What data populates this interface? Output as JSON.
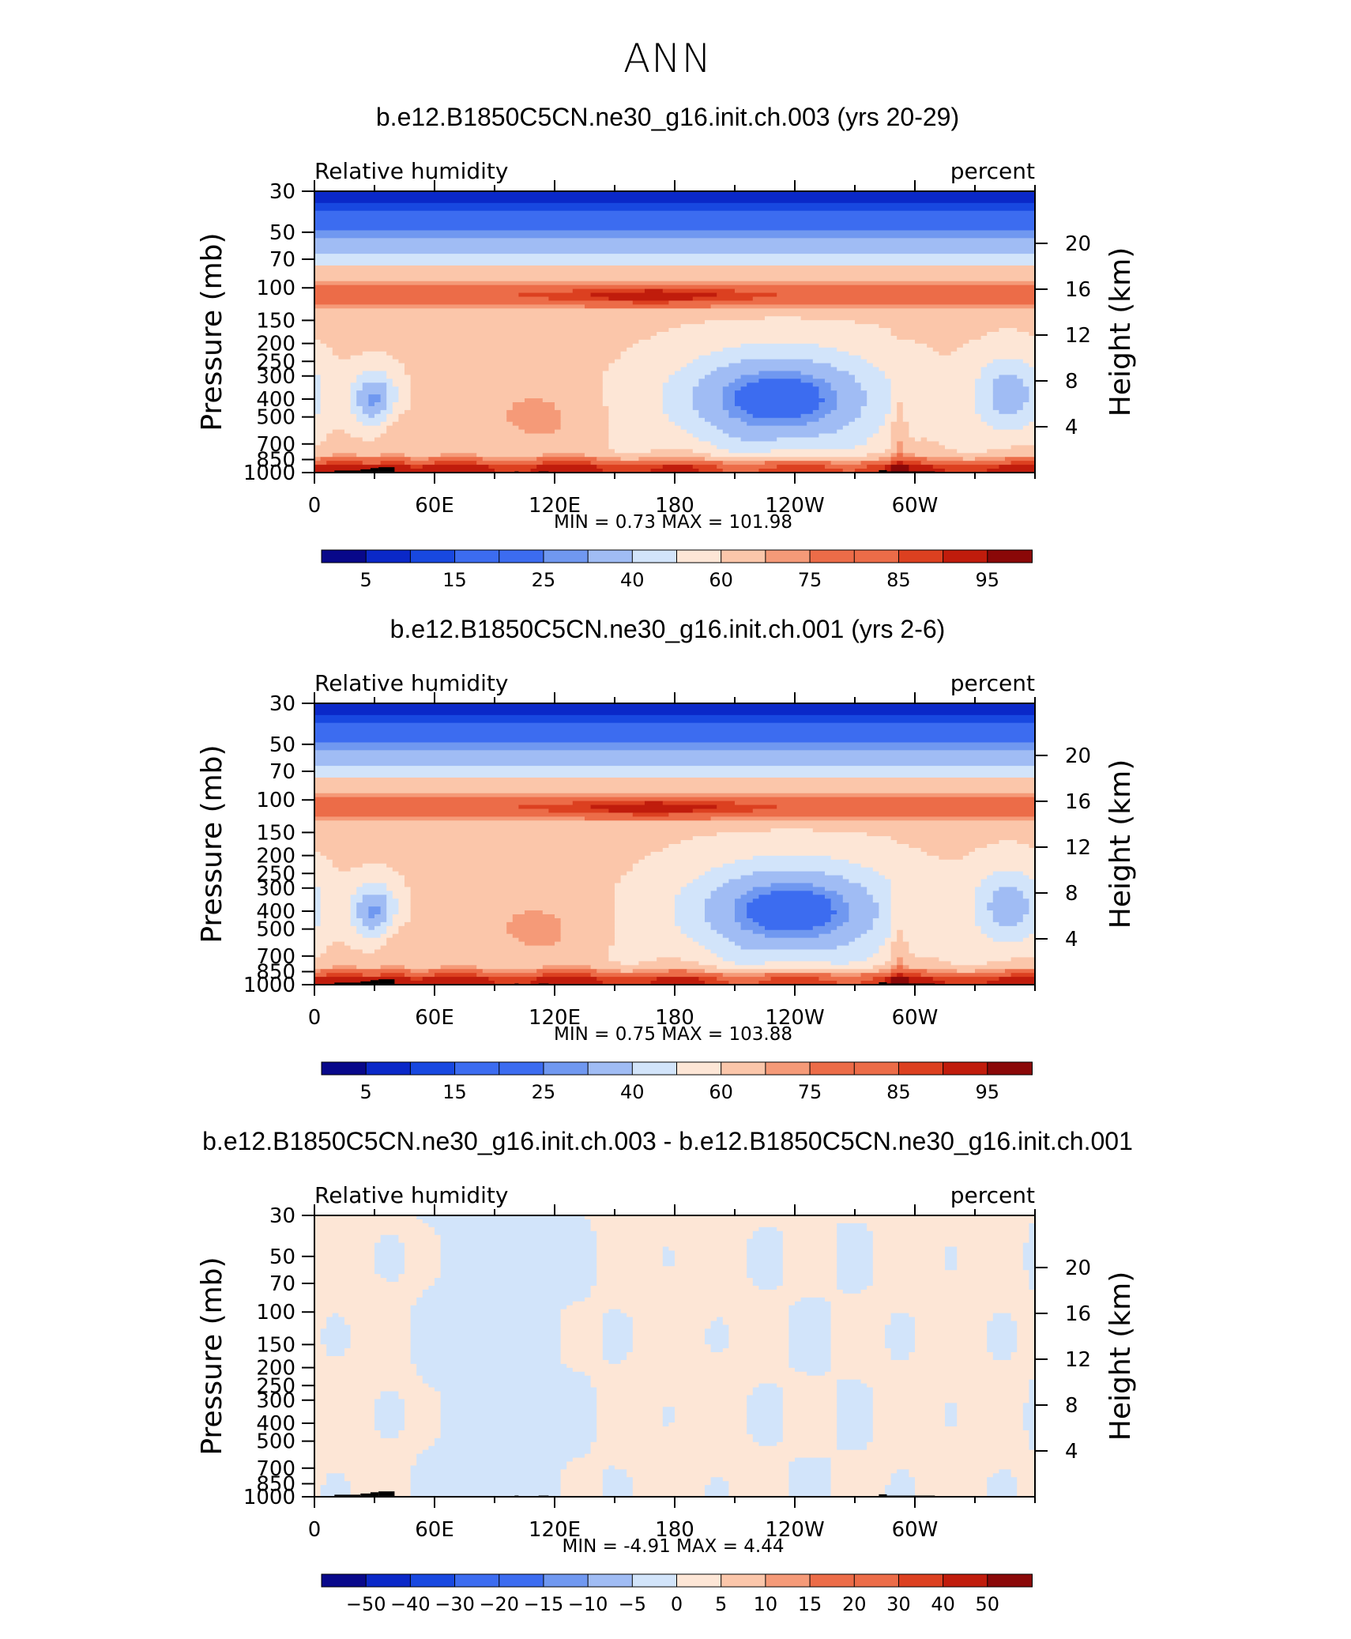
{
  "page_title": "ANN",
  "colors": {
    "div": [
      "#08088a",
      "#0a28c8",
      "#1848e0",
      "#3c6cf0",
      "#7098f0",
      "#a0bcf4",
      "#d2e4fa",
      "#fde6d6",
      "#fbc6aa",
      "#f59a78",
      "#ec6c48",
      "#dc4020",
      "#c01c0c",
      "#8a0808"
    ],
    "land": "#000000"
  },
  "chart_data": [
    {
      "type": "heatmap",
      "title": "b.e12.B1850C5CN.ne30_g16.init.ch.003 (yrs 20-29)",
      "left_label": "Relative humidity",
      "right_label": "percent",
      "ylabel": "Pressure (mb)",
      "y2label": "Height (km)",
      "y_scale": "log",
      "y_ticks": [
        "30",
        "50",
        "70",
        "100",
        "150",
        "200",
        "250",
        "300",
        "400",
        "500",
        "700",
        "850",
        "1000"
      ],
      "y2_ticks": [
        "20",
        "16",
        "12",
        "8",
        "4"
      ],
      "x_ticks": [
        "0",
        "60E",
        "120E",
        "180",
        "120W",
        "60W"
      ],
      "min_label": "MIN =",
      "min_value": "0.73",
      "max_label": "MAX =",
      "max_value": "101.98",
      "colorbar_labels": [
        "5",
        "15",
        "25",
        "40",
        "60",
        "75",
        "85",
        "95"
      ],
      "field": "relative_humidity_annual_zonal_section"
    },
    {
      "type": "heatmap",
      "title": "b.e12.B1850C5CN.ne30_g16.init.ch.001 (yrs 2-6)",
      "left_label": "Relative humidity",
      "right_label": "percent",
      "ylabel": "Pressure (mb)",
      "y2label": "Height (km)",
      "y_scale": "log",
      "y_ticks": [
        "30",
        "50",
        "70",
        "100",
        "150",
        "200",
        "250",
        "300",
        "400",
        "500",
        "700",
        "850",
        "1000"
      ],
      "y2_ticks": [
        "20",
        "16",
        "12",
        "8",
        "4"
      ],
      "x_ticks": [
        "0",
        "60E",
        "120E",
        "180",
        "120W",
        "60W"
      ],
      "min_label": "MIN =",
      "min_value": "0.75",
      "max_label": "MAX =",
      "max_value": "103.88",
      "colorbar_labels": [
        "5",
        "15",
        "25",
        "40",
        "60",
        "75",
        "85",
        "95"
      ],
      "field": "relative_humidity_annual_zonal_section"
    },
    {
      "type": "heatmap",
      "title": "b.e12.B1850C5CN.ne30_g16.init.ch.003 - b.e12.B1850C5CN.ne30_g16.init.ch.001",
      "left_label": "Relative humidity",
      "right_label": "percent",
      "ylabel": "Pressure (mb)",
      "y2label": "Height (km)",
      "y_scale": "log",
      "y_ticks": [
        "30",
        "50",
        "70",
        "100",
        "150",
        "200",
        "250",
        "300",
        "400",
        "500",
        "700",
        "850",
        "1000"
      ],
      "y2_ticks": [
        "20",
        "16",
        "12",
        "8",
        "4"
      ],
      "x_ticks": [
        "0",
        "60E",
        "120E",
        "180",
        "120W",
        "60W"
      ],
      "min_label": "MIN =",
      "min_value": "-4.91",
      "max_label": "MAX =",
      "max_value": "4.44",
      "colorbar_labels": [
        "-50",
        "-40",
        "-30",
        "-20",
        "-15",
        "-10",
        "-5",
        "0",
        "5",
        "10",
        "15",
        "20",
        "30",
        "40",
        "50"
      ],
      "field": "relative_humidity_difference"
    }
  ]
}
